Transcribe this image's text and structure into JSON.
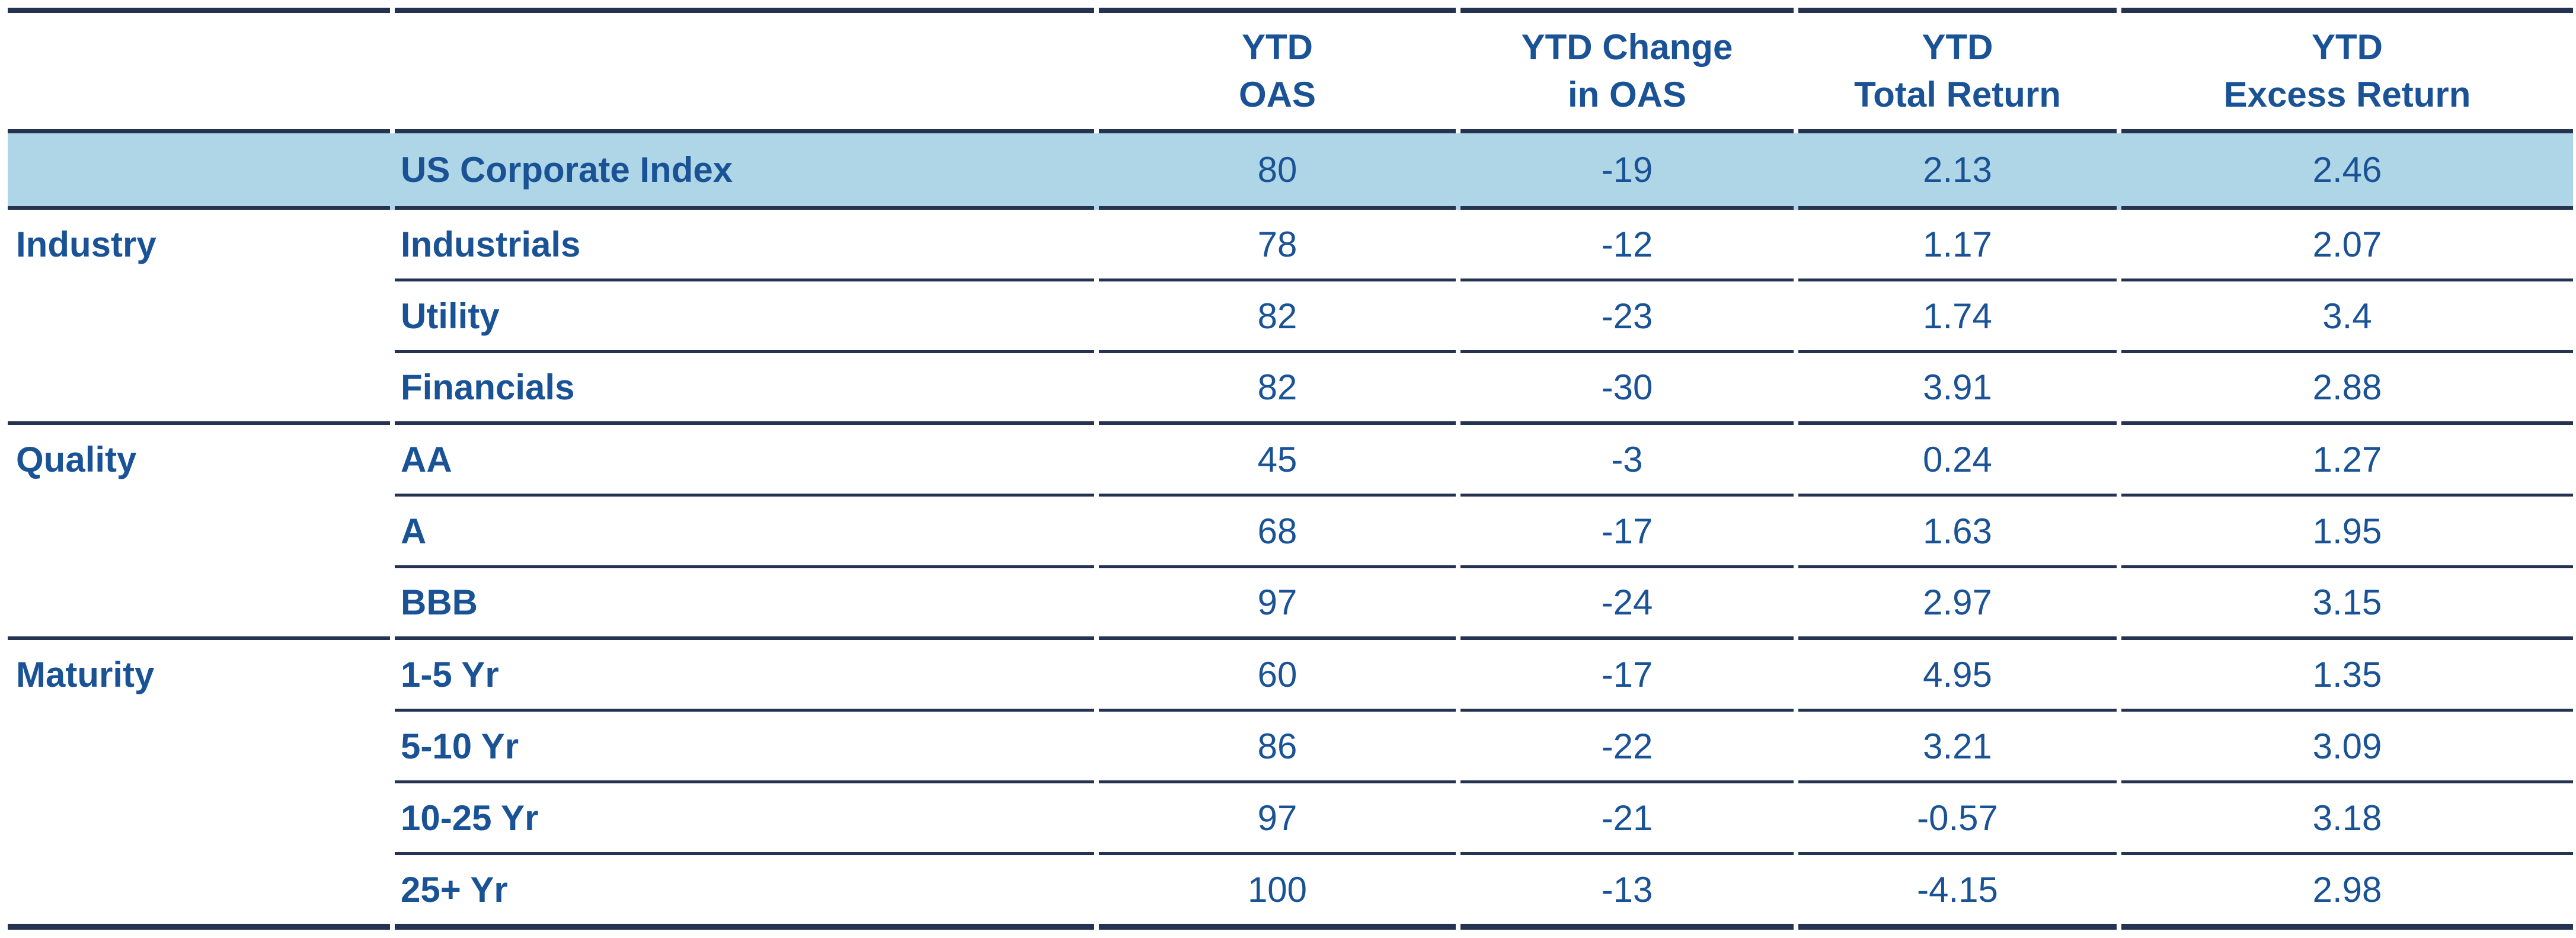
{
  "table": {
    "header": {
      "columns": [
        {
          "line1": "YTD",
          "line2": "OAS"
        },
        {
          "line1": "YTD Change",
          "line2": "in OAS"
        },
        {
          "line1": "YTD",
          "line2": "Total Return"
        },
        {
          "line1": "YTD",
          "line2": "Excess Return"
        }
      ]
    },
    "highlighted_row": "US Corporate Index",
    "rows": [
      {
        "group": "",
        "name": "US Corporate Index",
        "ytd_oas": "80",
        "ytd_change_in_oas": "-19",
        "ytd_total_return": "2.13",
        "ytd_excess_return": "2.46"
      },
      {
        "group": "Industry",
        "name": "Industrials",
        "ytd_oas": "78",
        "ytd_change_in_oas": "-12",
        "ytd_total_return": "1.17",
        "ytd_excess_return": "2.07"
      },
      {
        "group": "",
        "name": "Utility",
        "ytd_oas": "82",
        "ytd_change_in_oas": "-23",
        "ytd_total_return": "1.74",
        "ytd_excess_return": "3.4"
      },
      {
        "group": "",
        "name": "Financials",
        "ytd_oas": "82",
        "ytd_change_in_oas": "-30",
        "ytd_total_return": "3.91",
        "ytd_excess_return": "2.88"
      },
      {
        "group": "Quality",
        "name": "AA",
        "ytd_oas": "45",
        "ytd_change_in_oas": "-3",
        "ytd_total_return": "0.24",
        "ytd_excess_return": "1.27"
      },
      {
        "group": "",
        "name": "A",
        "ytd_oas": "68",
        "ytd_change_in_oas": "-17",
        "ytd_total_return": "1.63",
        "ytd_excess_return": "1.95"
      },
      {
        "group": "",
        "name": "BBB",
        "ytd_oas": "97",
        "ytd_change_in_oas": "-24",
        "ytd_total_return": "2.97",
        "ytd_excess_return": "3.15"
      },
      {
        "group": "Maturity",
        "name": "1-5 Yr",
        "ytd_oas": "60",
        "ytd_change_in_oas": "-17",
        "ytd_total_return": "4.95",
        "ytd_excess_return": "1.35"
      },
      {
        "group": "",
        "name": "5-10 Yr",
        "ytd_oas": "86",
        "ytd_change_in_oas": "-22",
        "ytd_total_return": "3.21",
        "ytd_excess_return": "3.09"
      },
      {
        "group": "",
        "name": "10-25 Yr",
        "ytd_oas": "97",
        "ytd_change_in_oas": "-21",
        "ytd_total_return": "-0.57",
        "ytd_excess_return": "3.18"
      },
      {
        "group": "",
        "name": "25+ Yr",
        "ytd_oas": "100",
        "ytd_change_in_oas": "-13",
        "ytd_total_return": "-4.15",
        "ytd_excess_return": "2.98"
      }
    ]
  },
  "colors": {
    "text": "#1A5296",
    "line": "#243351",
    "highlight_row_bg": "#AFD6E6"
  }
}
